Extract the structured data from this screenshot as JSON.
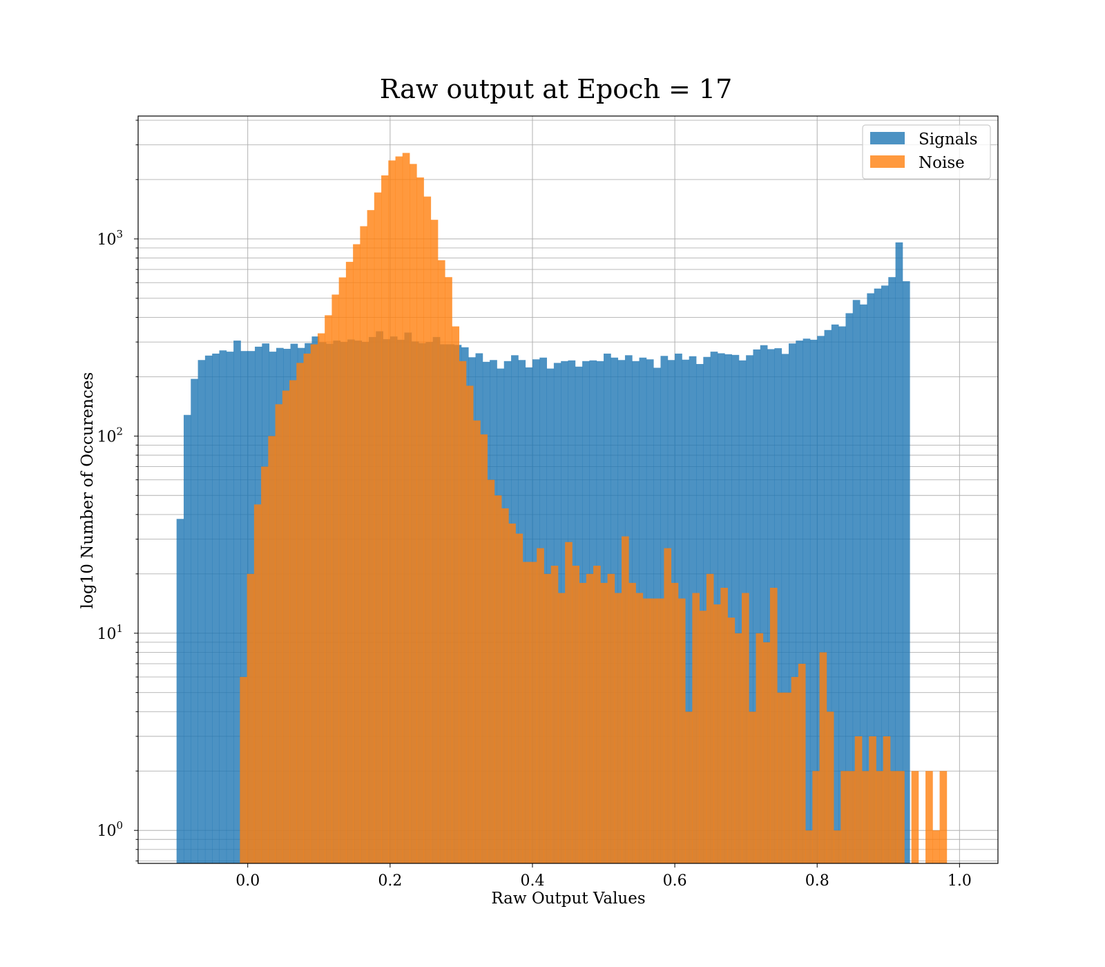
{
  "chart_data": {
    "type": "histogram",
    "title": "Raw output at Epoch = 17",
    "xlabel": "Raw Output Values",
    "ylabel": "log10 Number of Occurences",
    "yscale": "log",
    "xlim": [
      -0.154,
      1.054
    ],
    "ylim": [
      0.68,
      4200
    ],
    "x_ticks": [
      0.0,
      0.2,
      0.4,
      0.6,
      0.8,
      1.0
    ],
    "x_tick_labels": [
      "0.0",
      "0.2",
      "0.4",
      "0.6",
      "0.8",
      "1.0"
    ],
    "y_ticks": [
      1,
      10,
      100,
      1000
    ],
    "y_tick_labels": [
      {
        "base": "10",
        "exp": "0"
      },
      {
        "base": "10",
        "exp": "1"
      },
      {
        "base": "10",
        "exp": "2"
      },
      {
        "base": "10",
        "exp": "3"
      }
    ],
    "grid": true,
    "legend_position": "top-right",
    "series": [
      {
        "name": "Signals",
        "color": "#1f77b4",
        "opacity": 0.8,
        "bin_start": -0.1,
        "bin_width": 0.01,
        "values": [
          38,
          128,
          195,
          243,
          256,
          262,
          272,
          268,
          305,
          270,
          270,
          284,
          295,
          268,
          280,
          277,
          294,
          280,
          296,
          320,
          299,
          294,
          305,
          300,
          309,
          305,
          300,
          318,
          340,
          310,
          320,
          308,
          335,
          302,
          296,
          300,
          318,
          292,
          292,
          290,
          282,
          251,
          263,
          238,
          243,
          220,
          240,
          257,
          243,
          223,
          245,
          250,
          220,
          235,
          240,
          242,
          225,
          240,
          242,
          240,
          262,
          250,
          243,
          257,
          240,
          250,
          245,
          222,
          255,
          243,
          262,
          244,
          254,
          232,
          252,
          268,
          263,
          260,
          258,
          242,
          257,
          275,
          289,
          276,
          279,
          261,
          295,
          305,
          312,
          308,
          322,
          345,
          368,
          360,
          420,
          490,
          465,
          530,
          560,
          580,
          640,
          960,
          610
        ]
      },
      {
        "name": "Noise",
        "color": "#ff7f0e",
        "opacity": 0.8,
        "bin_start": -0.011,
        "bin_width": 0.00993,
        "values": [
          6,
          20,
          45,
          70,
          100,
          145,
          170,
          192,
          235,
          262,
          292,
          332,
          410,
          522,
          638,
          765,
          940,
          1160,
          1400,
          1720,
          2100,
          2500,
          2620,
          2730,
          2400,
          2050,
          1640,
          1250,
          780,
          640,
          360,
          240,
          180,
          120,
          102,
          60,
          50,
          43,
          36,
          32,
          23,
          23,
          27,
          20,
          22,
          16,
          29,
          22,
          18,
          20,
          22,
          18,
          20,
          16,
          31,
          18,
          16,
          15,
          15,
          15,
          27,
          18,
          15,
          4,
          16,
          13,
          20,
          14,
          17,
          12,
          10,
          16,
          4,
          10,
          9,
          17,
          5,
          5,
          6,
          7,
          1,
          2,
          8,
          4,
          1,
          2,
          2,
          3,
          2,
          3,
          2,
          3,
          2,
          2,
          0,
          2,
          0,
          2,
          1,
          2
        ]
      }
    ]
  }
}
